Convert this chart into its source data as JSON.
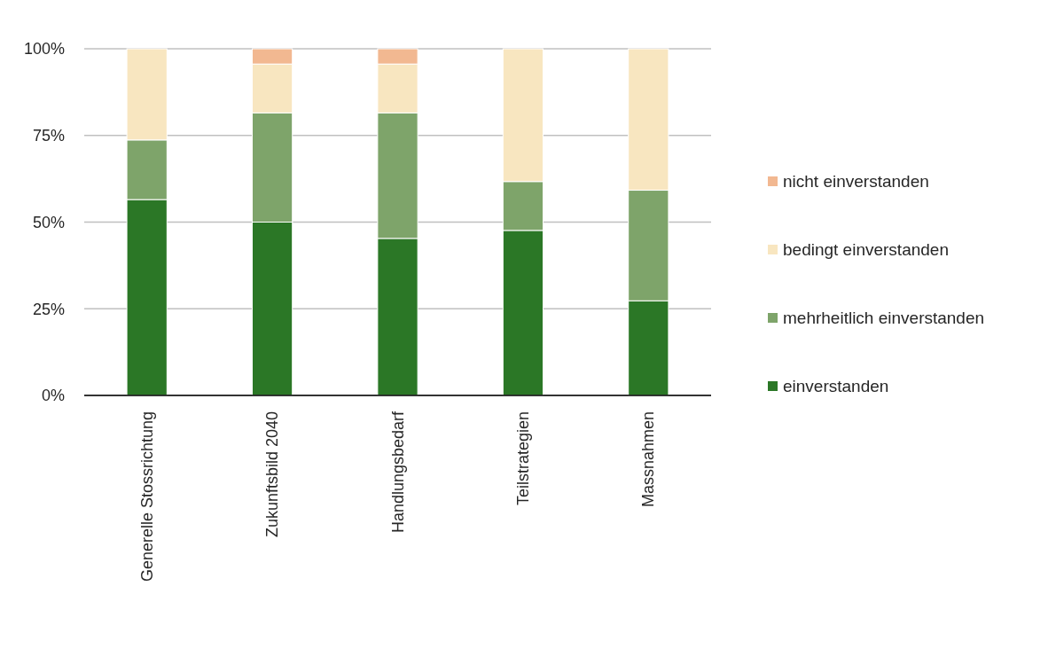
{
  "chart_data": {
    "type": "bar",
    "stacked": true,
    "categories": [
      "Generelle Stossrichtung",
      "Zukunftsbild 2040",
      "Handlungsbedarf",
      "Teilstrategien",
      "Massnahmen"
    ],
    "series": [
      {
        "name": "einverstanden",
        "color": "#2b7726",
        "values": [
          56.5,
          50,
          45.3,
          47.6,
          27.3
        ]
      },
      {
        "name": "mehrheitlich einverstanden",
        "color": "#7ea46a",
        "values": [
          17.2,
          31.5,
          36.2,
          14.1,
          31.9
        ]
      },
      {
        "name": "bedingt einverstanden",
        "color": "#f8e6c0",
        "values": [
          26.3,
          14.1,
          14.1,
          38.3,
          40.8
        ]
      },
      {
        "name": "nicht einverstanden",
        "color": "#f2b891",
        "values": [
          0,
          4.4,
          4.4,
          0,
          0
        ]
      }
    ],
    "ylim": [
      0,
      100
    ],
    "yticks": [
      {
        "value": 0,
        "label": "0%"
      },
      {
        "value": 25,
        "label": "25%"
      },
      {
        "value": 50,
        "label": "50%"
      },
      {
        "value": 75,
        "label": "75%"
      },
      {
        "value": 100,
        "label": "100%"
      }
    ],
    "grid": "y",
    "legend": "right"
  }
}
